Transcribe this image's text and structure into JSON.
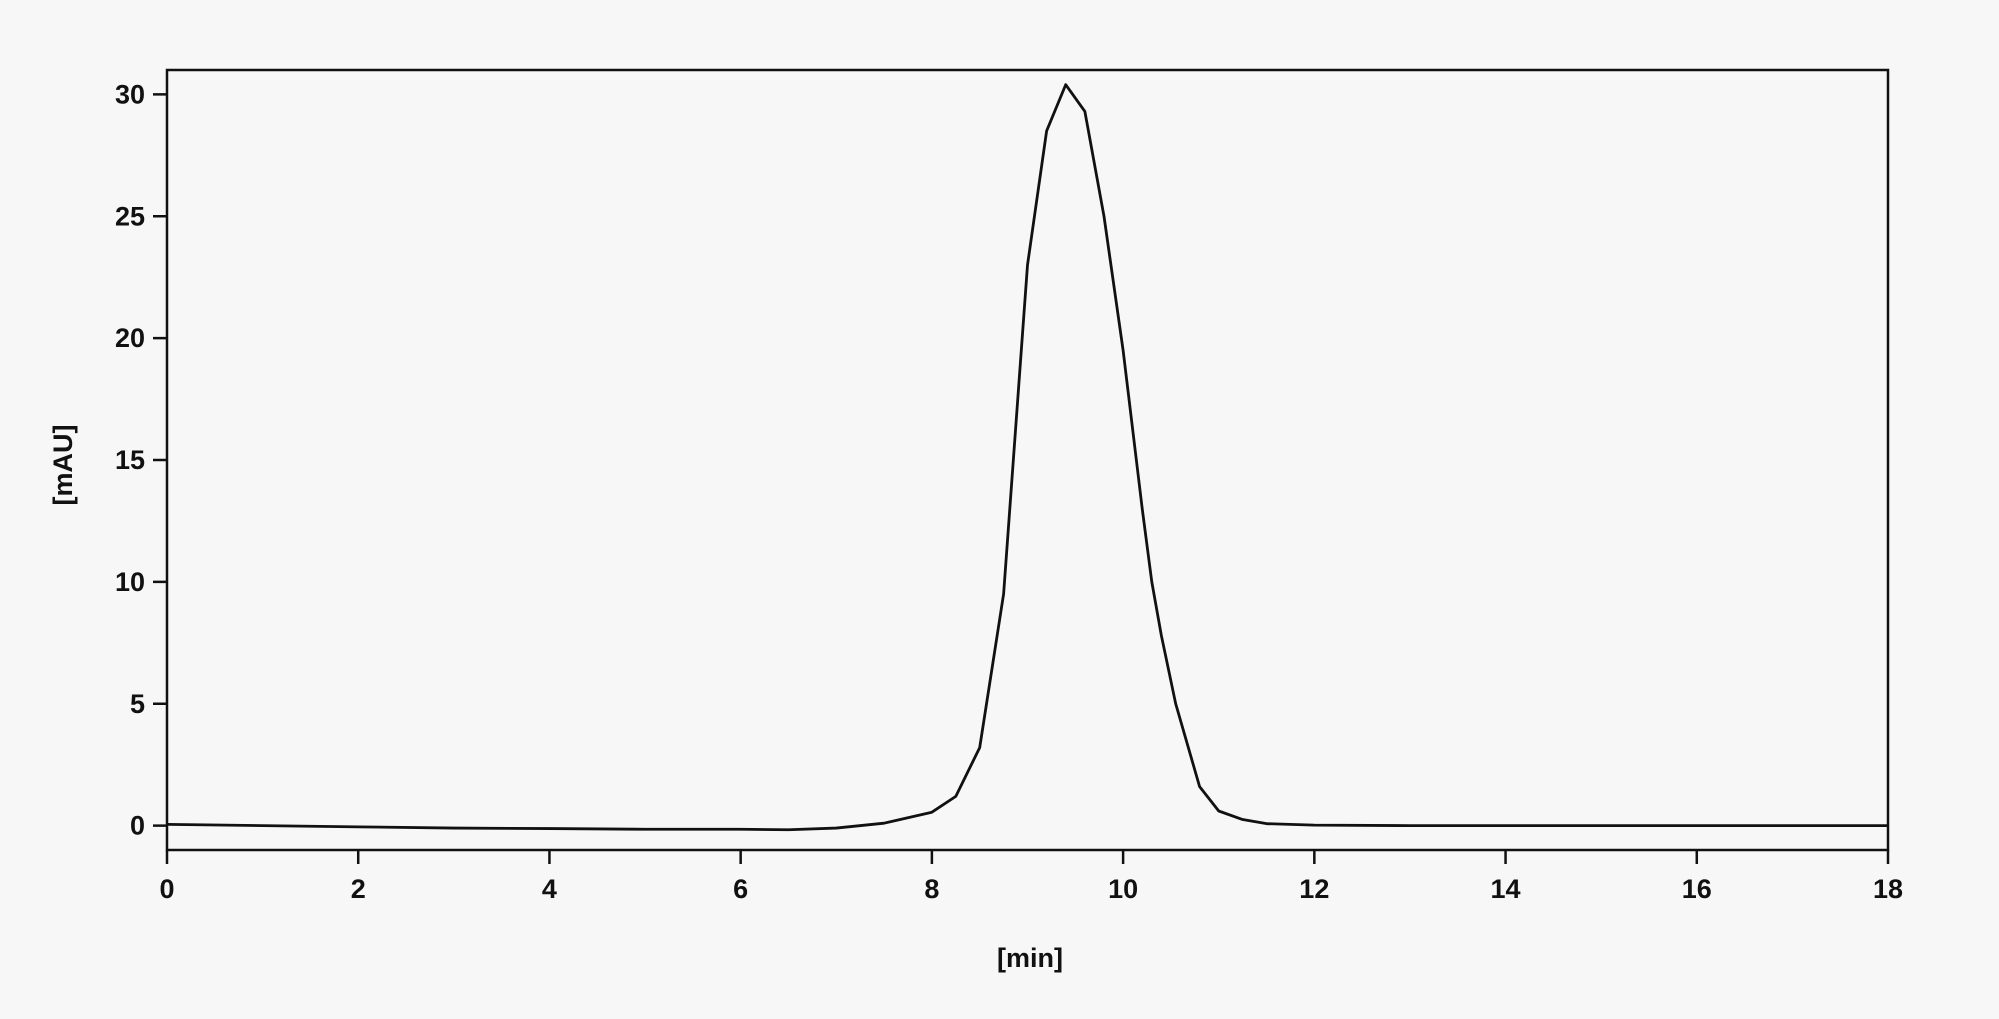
{
  "chart_data": {
    "type": "line",
    "x_label": "[min]",
    "y_label": "[mAU]",
    "xlim": [
      0,
      18
    ],
    "ylim": [
      -1,
      31
    ],
    "xticks": [
      0,
      2,
      4,
      6,
      8,
      10,
      12,
      14,
      16,
      18
    ],
    "yticks": [
      0,
      5,
      10,
      15,
      20,
      25,
      30
    ],
    "grid": false,
    "series": [
      {
        "color": "#111111",
        "x": [
          0,
          1,
          2,
          3,
          4,
          5,
          6,
          6.5,
          7,
          7.5,
          8,
          8.25,
          8.5,
          8.75,
          9.0,
          9.2,
          9.4,
          9.6,
          9.8,
          10.0,
          10.2,
          10.3,
          10.4,
          10.55,
          10.8,
          11.0,
          11.25,
          11.5,
          12,
          13,
          14,
          15,
          16,
          17,
          18
        ],
        "values": [
          0.05,
          0.0,
          -0.05,
          -0.1,
          -0.12,
          -0.15,
          -0.15,
          -0.17,
          -0.1,
          0.1,
          0.55,
          1.2,
          3.2,
          9.5,
          23,
          28.5,
          30.4,
          29.3,
          25,
          19.5,
          13,
          10,
          7.8,
          5,
          1.6,
          0.6,
          0.25,
          0.08,
          0.02,
          0.0,
          0.0,
          0.0,
          0.0,
          0.0,
          0.0
        ]
      }
    ]
  }
}
